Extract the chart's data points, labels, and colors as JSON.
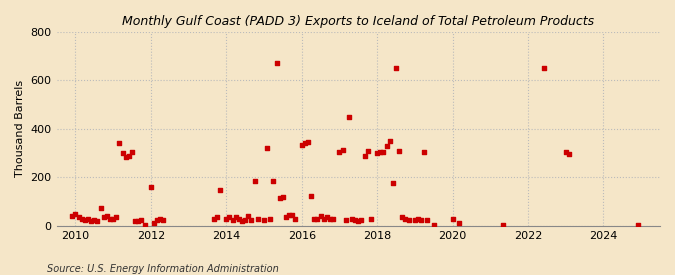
{
  "title": "Monthly Gulf Coast (PADD 3) Exports to Iceland of Total Petroleum Products",
  "ylabel": "Thousand Barrels",
  "source": "Source: U.S. Energy Information Administration",
  "background_color": "#f5e6c8",
  "marker_color": "#cc0000",
  "grid_color": "#bbbbbb",
  "ylim": [
    0,
    800
  ],
  "yticks": [
    0,
    200,
    400,
    600,
    800
  ],
  "data": [
    [
      2009.917,
      40
    ],
    [
      2010.0,
      50
    ],
    [
      2010.083,
      35
    ],
    [
      2010.167,
      30
    ],
    [
      2010.25,
      25
    ],
    [
      2010.333,
      30
    ],
    [
      2010.417,
      20
    ],
    [
      2010.5,
      25
    ],
    [
      2010.583,
      20
    ],
    [
      2010.667,
      75
    ],
    [
      2010.75,
      35
    ],
    [
      2010.833,
      40
    ],
    [
      2010.917,
      30
    ],
    [
      2011.0,
      30
    ],
    [
      2011.083,
      35
    ],
    [
      2011.167,
      340
    ],
    [
      2011.25,
      300
    ],
    [
      2011.333,
      285
    ],
    [
      2011.417,
      290
    ],
    [
      2011.5,
      305
    ],
    [
      2011.583,
      20
    ],
    [
      2011.667,
      20
    ],
    [
      2011.75,
      25
    ],
    [
      2011.833,
      5
    ],
    [
      2012.0,
      160
    ],
    [
      2012.083,
      10
    ],
    [
      2012.167,
      25
    ],
    [
      2012.25,
      30
    ],
    [
      2012.333,
      25
    ],
    [
      2013.667,
      30
    ],
    [
      2013.75,
      35
    ],
    [
      2013.833,
      150
    ],
    [
      2014.0,
      30
    ],
    [
      2014.083,
      35
    ],
    [
      2014.167,
      25
    ],
    [
      2014.25,
      35
    ],
    [
      2014.333,
      30
    ],
    [
      2014.417,
      20
    ],
    [
      2014.5,
      25
    ],
    [
      2014.583,
      40
    ],
    [
      2014.667,
      25
    ],
    [
      2014.75,
      185
    ],
    [
      2014.833,
      30
    ],
    [
      2015.0,
      25
    ],
    [
      2015.083,
      320
    ],
    [
      2015.167,
      30
    ],
    [
      2015.25,
      185
    ],
    [
      2015.333,
      670
    ],
    [
      2015.417,
      115
    ],
    [
      2015.5,
      120
    ],
    [
      2015.583,
      35
    ],
    [
      2015.667,
      45
    ],
    [
      2015.75,
      45
    ],
    [
      2015.833,
      30
    ],
    [
      2016.0,
      335
    ],
    [
      2016.083,
      340
    ],
    [
      2016.167,
      345
    ],
    [
      2016.25,
      125
    ],
    [
      2016.333,
      30
    ],
    [
      2016.417,
      30
    ],
    [
      2016.5,
      40
    ],
    [
      2016.583,
      30
    ],
    [
      2016.667,
      35
    ],
    [
      2016.75,
      30
    ],
    [
      2016.833,
      30
    ],
    [
      2017.0,
      305
    ],
    [
      2017.083,
      315
    ],
    [
      2017.167,
      25
    ],
    [
      2017.25,
      450
    ],
    [
      2017.333,
      30
    ],
    [
      2017.417,
      25
    ],
    [
      2017.5,
      20
    ],
    [
      2017.583,
      25
    ],
    [
      2017.667,
      290
    ],
    [
      2017.75,
      310
    ],
    [
      2017.833,
      30
    ],
    [
      2018.0,
      300
    ],
    [
      2018.083,
      305
    ],
    [
      2018.167,
      305
    ],
    [
      2018.25,
      330
    ],
    [
      2018.333,
      350
    ],
    [
      2018.417,
      175
    ],
    [
      2018.5,
      650
    ],
    [
      2018.583,
      310
    ],
    [
      2018.667,
      35
    ],
    [
      2018.75,
      30
    ],
    [
      2018.833,
      25
    ],
    [
      2019.0,
      25
    ],
    [
      2019.083,
      30
    ],
    [
      2019.167,
      25
    ],
    [
      2019.25,
      305
    ],
    [
      2019.333,
      25
    ],
    [
      2019.5,
      5
    ],
    [
      2020.0,
      30
    ],
    [
      2020.167,
      10
    ],
    [
      2021.333,
      5
    ],
    [
      2022.417,
      650
    ],
    [
      2023.0,
      305
    ],
    [
      2023.083,
      295
    ],
    [
      2024.917,
      5
    ]
  ],
  "xmin": 2009.5,
  "xmax": 2025.5,
  "xticks": [
    2010,
    2012,
    2014,
    2016,
    2018,
    2020,
    2022,
    2024
  ]
}
